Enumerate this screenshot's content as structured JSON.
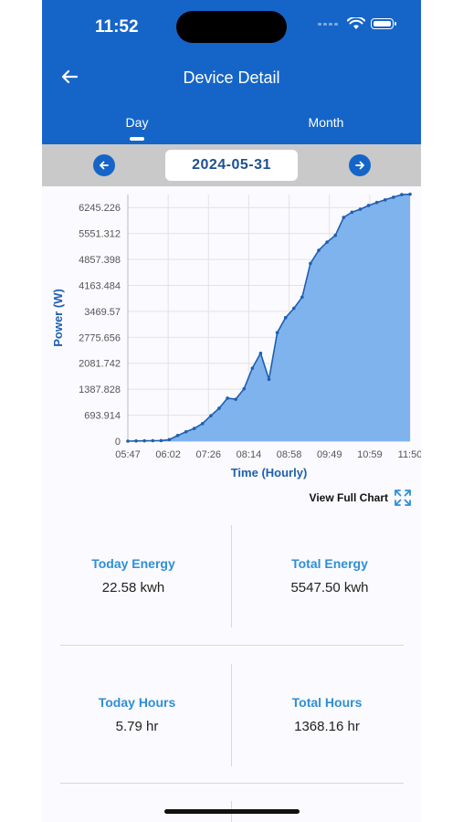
{
  "status_bar": {
    "time": "11:52"
  },
  "header": {
    "title": "Device Detail"
  },
  "tabs": [
    {
      "label": "Day",
      "active": true
    },
    {
      "label": "Month",
      "active": false
    }
  ],
  "date_selector": {
    "date": "2024-05-31"
  },
  "chart_data": {
    "type": "area",
    "xlabel": "Time (Hourly)",
    "ylabel": "Power (W)",
    "x_ticks": [
      "05:47",
      "06:02",
      "07:26",
      "08:14",
      "08:58",
      "09:49",
      "10:59",
      "11:50"
    ],
    "y_ticks": [
      "0",
      "693.914",
      "1387.828",
      "2081.742",
      "2775.656",
      "3469.57",
      "4163.484",
      "4857.398",
      "5551.312",
      "6245.226"
    ],
    "ylim": [
      0,
      6592
    ],
    "grid": true,
    "series_color": "#7fb3ee",
    "line_color": "#1e5fb0",
    "values": [
      0,
      5,
      8,
      12,
      15,
      40,
      150,
      250,
      340,
      470,
      680,
      880,
      1150,
      1120,
      1400,
      1950,
      2350,
      1650,
      2900,
      3300,
      3550,
      3850,
      4750,
      5100,
      5320,
      5500,
      5980,
      6120,
      6200,
      6300,
      6380,
      6450,
      6520,
      6590,
      6600
    ]
  },
  "view_full_chart": {
    "label": "View Full Chart"
  },
  "stats": {
    "today_energy": {
      "label": "Today Energy",
      "value": "22.58 kwh"
    },
    "total_energy": {
      "label": "Total Energy",
      "value": "5547.50 kwh"
    },
    "today_hours": {
      "label": "Today Hours",
      "value": "5.79 hr"
    },
    "total_hours": {
      "label": "Total Hours",
      "value": "1368.16 hr"
    }
  },
  "colors": {
    "primary": "#1565c8",
    "accent_text": "#2e8fd6",
    "date_text": "#1e4f91"
  }
}
